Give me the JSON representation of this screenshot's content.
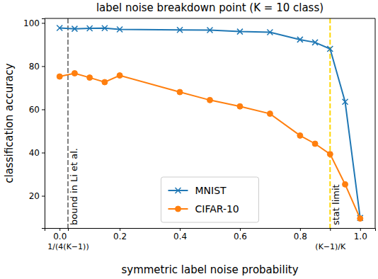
{
  "chart_data": {
    "type": "line",
    "title": "label noise breakdown point (K = 10 class)",
    "x_label": "symmetric label noise probability",
    "y_label": "classification accuracy",
    "x": [
      0,
      0.05,
      0.1,
      0.15,
      0.2,
      0.4,
      0.5,
      0.6,
      0.7,
      0.8,
      0.85,
      0.9,
      0.95,
      1.0
    ],
    "series": [
      {
        "name": "MNIST",
        "color": "#1f77b4",
        "marker": "x",
        "values": [
          97.7,
          97.3,
          97.5,
          97.6,
          97.0,
          96.8,
          96.7,
          96.0,
          95.7,
          92.3,
          91.0,
          88.0,
          63.5,
          9.8
        ]
      },
      {
        "name": "CIFAR-10",
        "color": "#ff7f0e",
        "marker": "circle",
        "values": [
          75.2,
          76.7,
          74.7,
          72.6,
          75.7,
          68.0,
          64.3,
          61.4,
          58.0,
          47.9,
          44.1,
          39.3,
          25.3,
          9.5
        ]
      }
    ],
    "annotations": [
      {
        "x": 0.0278,
        "label": "bound in Li et al.",
        "color": "#808080",
        "line_style": "dashed"
      },
      {
        "x": 0.9,
        "label": "stat limit",
        "color": "#ffd700",
        "line_style": "dashed"
      }
    ],
    "xlim": [
      -0.05,
      1.05
    ],
    "xticks": [
      {
        "value": 0,
        "label": "0.0"
      },
      {
        "value": 0.0278,
        "label": "1/(4(K−1))"
      },
      0.2,
      0.4,
      0.6,
      0.8,
      {
        "value": 0.9,
        "label": "(K−1)/K"
      },
      {
        "value": 1.0,
        "label": "1.0"
      }
    ],
    "ylim": [
      5.1,
      102.1
    ],
    "yticks": [
      20,
      40,
      60,
      80,
      100
    ],
    "grid": false,
    "legend": "lower center"
  }
}
